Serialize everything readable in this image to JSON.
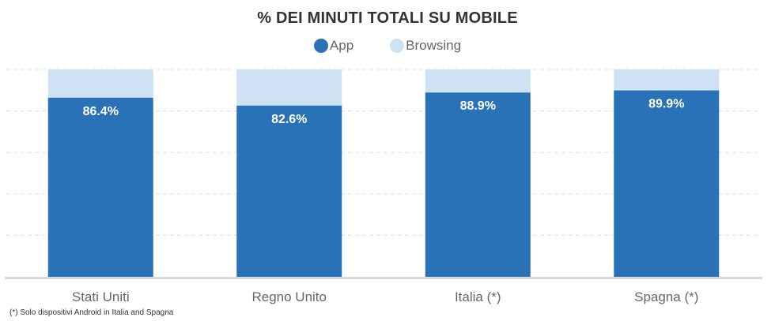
{
  "chart_data": {
    "type": "bar",
    "stacked": true,
    "title": "%  DEI MINUTI TOTALI SU MOBILE",
    "categories": [
      "Stati Uniti",
      "Regno Unito",
      "Italia (*)",
      "Spagna (*)"
    ],
    "series": [
      {
        "name": "App",
        "color": "#2a72b8",
        "values": [
          86.4,
          82.6,
          88.9,
          89.9
        ],
        "labels": [
          "86.4%",
          "82.6%",
          "88.9%",
          "89.9%"
        ]
      },
      {
        "name": "Browsing",
        "color": "#cfe2f3",
        "values": [
          13.6,
          17.4,
          11.1,
          10.1
        ]
      }
    ],
    "ylim": [
      0,
      100
    ],
    "grid": true,
    "legend": "top-center"
  },
  "footnote": "(*) Solo dispositivi Android in Italia and Spagna"
}
